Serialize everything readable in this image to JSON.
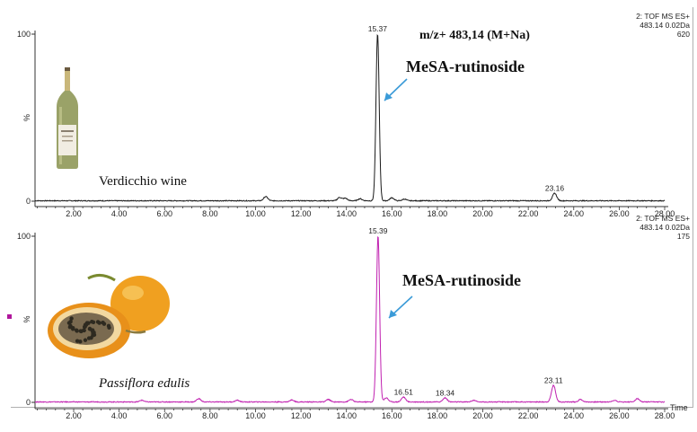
{
  "chart_data": [
    {
      "type": "line",
      "sample_label": "Verdicchio wine",
      "info_lines": [
        "2: TOF MS ES+",
        "483.14 0.02Da",
        "620"
      ],
      "mass_annotation": "m/z+ 483,14 (M+Na)",
      "compound_label": "MeSA-rutinoside",
      "y_tick_labels": [
        "100",
        "%",
        "0"
      ],
      "x_tick_labels": [
        "2.00",
        "4.00",
        "6.00",
        "8.00",
        "10.00",
        "12.00",
        "14.00",
        "16.00",
        "18.00",
        "20.00",
        "22.00",
        "24.00",
        "26.00",
        "28.00"
      ],
      "xlim": [
        0.3,
        28.0
      ],
      "ylim": [
        0,
        100
      ],
      "color": "#1a1a1a",
      "picture": "wine-bottle",
      "series": [
        {
          "x": [
            10.45,
            13.7,
            13.95,
            14.6,
            15.37,
            16.0,
            16.55,
            23.16
          ],
          "y": [
            2.5,
            2.0,
            1.5,
            1.2,
            100,
            1.8,
            1.0,
            4.5
          ]
        }
      ],
      "peak_labels": [
        {
          "x": 15.37,
          "y": 100,
          "text": "15.37"
        },
        {
          "x": 23.16,
          "y": 4.5,
          "text": "23.16"
        }
      ]
    },
    {
      "type": "line",
      "sample_label": "Passiflora edulis",
      "info_lines": [
        "2: TOF MS ES+",
        "483.14 0.02Da",
        "175"
      ],
      "compound_label": "MeSA-rutinoside",
      "y_tick_labels": [
        "100",
        "%",
        "0"
      ],
      "x_tick_labels": [
        "2.00",
        "4.00",
        "6.00",
        "8.00",
        "10.00",
        "12.00",
        "14.00",
        "16.00",
        "18.00",
        "20.00",
        "22.00",
        "24.00",
        "26.00",
        "28.00"
      ],
      "x_axis_title": "Time",
      "xlim": [
        0.3,
        28.0
      ],
      "ylim": [
        0,
        100
      ],
      "color": "#c020b0",
      "picture": "passion-fruit",
      "series": [
        {
          "x": [
            5.0,
            7.5,
            9.2,
            11.6,
            13.2,
            14.2,
            15.39,
            15.75,
            16.51,
            18.34,
            19.6,
            23.11,
            24.3,
            25.8,
            26.8
          ],
          "y": [
            1.0,
            2.0,
            1.0,
            1.2,
            1.5,
            1.5,
            100,
            2.5,
            3.0,
            2.5,
            1.0,
            10.0,
            1.5,
            1.0,
            2.0
          ]
        }
      ],
      "peak_labels": [
        {
          "x": 15.39,
          "y": 100,
          "text": "15.39"
        },
        {
          "x": 16.51,
          "y": 3.0,
          "text": "16.51"
        },
        {
          "x": 18.34,
          "y": 2.5,
          "text": "18.34"
        },
        {
          "x": 23.11,
          "y": 10.0,
          "text": "23.11"
        }
      ]
    }
  ]
}
